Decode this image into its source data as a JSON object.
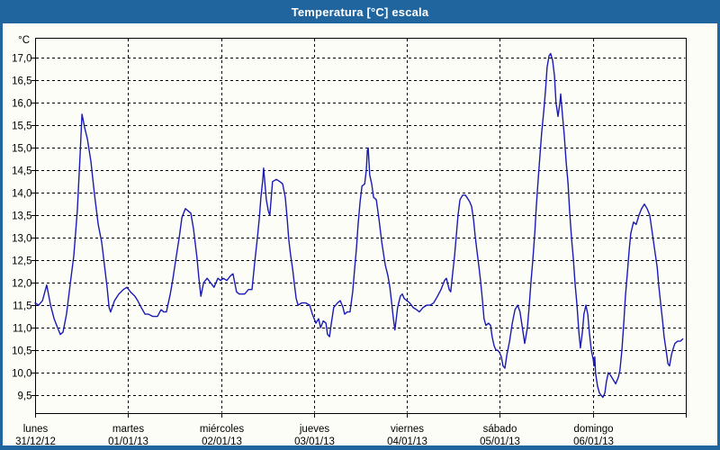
{
  "window": {
    "title": "Temperatura [°C] escala"
  },
  "colors": {
    "titlebar_bg": "#20659E",
    "frame_border": "#20659E",
    "background": "#FDFDF8",
    "grid": "#000000",
    "axis": "#000000",
    "line": "#1A1AB4",
    "title_text": "#FFFFFF",
    "label_text": "#000000"
  },
  "chart_data": {
    "type": "line",
    "title": "Temperatura [°C] escala",
    "y_unit_label": "°C",
    "grid": "dashed",
    "legend": "none",
    "ylim": [
      9.1,
      17.45
    ],
    "xlim_hours": [
      0,
      168
    ],
    "y_ticks": [
      {
        "value": 17.0,
        "label": "17,0"
      },
      {
        "value": 16.5,
        "label": "16,5"
      },
      {
        "value": 16.0,
        "label": "16,0"
      },
      {
        "value": 15.5,
        "label": "15,5"
      },
      {
        "value": 15.0,
        "label": "15,0"
      },
      {
        "value": 14.5,
        "label": "14,5"
      },
      {
        "value": 14.0,
        "label": "14,0"
      },
      {
        "value": 13.5,
        "label": "13,5"
      },
      {
        "value": 13.0,
        "label": "13,0"
      },
      {
        "value": 12.5,
        "label": "12,5"
      },
      {
        "value": 12.0,
        "label": "12,0"
      },
      {
        "value": 11.5,
        "label": "11,5"
      },
      {
        "value": 11.0,
        "label": "11,0"
      },
      {
        "value": 10.5,
        "label": "10,5"
      },
      {
        "value": 10.0,
        "label": "10,0"
      },
      {
        "value": 9.5,
        "label": "9,5"
      }
    ],
    "x_ticks": [
      {
        "hour": 0,
        "day": "lunes",
        "date": "31/12/12"
      },
      {
        "hour": 24,
        "day": "martes",
        "date": "01/01/13"
      },
      {
        "hour": 48,
        "day": "miércoles",
        "date": "02/01/13"
      },
      {
        "hour": 72,
        "day": "jueves",
        "date": "03/01/13"
      },
      {
        "hour": 96,
        "day": "viernes",
        "date": "04/01/13"
      },
      {
        "hour": 120,
        "day": "sábado",
        "date": "05/01/13"
      },
      {
        "hour": 144,
        "day": "domingo",
        "date": "06/01/13"
      }
    ],
    "series": [
      {
        "name": "Temperatura",
        "points": [
          [
            0,
            11.55
          ],
          [
            0.9,
            11.5
          ],
          [
            1.9,
            11.6
          ],
          [
            3,
            11.95
          ],
          [
            4,
            11.5
          ],
          [
            4.9,
            11.2
          ],
          [
            5.8,
            11.0
          ],
          [
            6.5,
            10.85
          ],
          [
            7.2,
            10.9
          ],
          [
            8.1,
            11.3
          ],
          [
            9.1,
            12.0
          ],
          [
            10,
            12.6
          ],
          [
            10.9,
            13.6
          ],
          [
            11.6,
            14.8
          ],
          [
            12.1,
            15.75
          ],
          [
            12.8,
            15.45
          ],
          [
            13.5,
            15.2
          ],
          [
            14.4,
            14.7
          ],
          [
            15.3,
            14.0
          ],
          [
            16.3,
            13.3
          ],
          [
            17.2,
            12.9
          ],
          [
            17.9,
            12.4
          ],
          [
            18.6,
            11.9
          ],
          [
            19.1,
            11.45
          ],
          [
            19.5,
            11.35
          ],
          [
            20.5,
            11.6
          ],
          [
            21.6,
            11.75
          ],
          [
            22.8,
            11.85
          ],
          [
            23.7,
            11.9
          ],
          [
            24.6,
            11.8
          ],
          [
            25.8,
            11.7
          ],
          [
            26.5,
            11.6
          ],
          [
            27.4,
            11.45
          ],
          [
            28.4,
            11.3
          ],
          [
            29.3,
            11.3
          ],
          [
            30.4,
            11.25
          ],
          [
            31.6,
            11.25
          ],
          [
            32.5,
            11.4
          ],
          [
            33.2,
            11.35
          ],
          [
            33.9,
            11.35
          ],
          [
            34.9,
            11.75
          ],
          [
            35.6,
            12.1
          ],
          [
            36.3,
            12.5
          ],
          [
            37.2,
            13.0
          ],
          [
            37.9,
            13.45
          ],
          [
            38.8,
            13.65
          ],
          [
            39.5,
            13.6
          ],
          [
            40.2,
            13.55
          ],
          [
            40.9,
            13.2
          ],
          [
            41.8,
            12.55
          ],
          [
            42.3,
            12.1
          ],
          [
            42.8,
            11.7
          ],
          [
            43.5,
            12.0
          ],
          [
            44.4,
            12.1
          ],
          [
            45.3,
            12.0
          ],
          [
            46.2,
            11.9
          ],
          [
            47.2,
            12.1
          ],
          [
            47.9,
            12.05
          ],
          [
            48.6,
            12.1
          ],
          [
            49.5,
            12.05
          ],
          [
            50.4,
            12.15
          ],
          [
            51.1,
            12.2
          ],
          [
            52,
            11.8
          ],
          [
            52.7,
            11.75
          ],
          [
            54.1,
            11.75
          ],
          [
            55.1,
            11.85
          ],
          [
            56,
            11.85
          ],
          [
            56.7,
            12.45
          ],
          [
            57.4,
            13.0
          ],
          [
            57.9,
            13.45
          ],
          [
            58.3,
            13.9
          ],
          [
            58.8,
            14.3
          ],
          [
            59,
            14.55
          ],
          [
            59.7,
            13.85
          ],
          [
            60.2,
            13.6
          ],
          [
            60.6,
            13.5
          ],
          [
            61.3,
            14.25
          ],
          [
            62.3,
            14.3
          ],
          [
            63.2,
            14.25
          ],
          [
            63.9,
            14.2
          ],
          [
            64.6,
            13.9
          ],
          [
            65.1,
            13.4
          ],
          [
            65.5,
            12.95
          ],
          [
            66,
            12.6
          ],
          [
            66.5,
            12.3
          ],
          [
            66.9,
            12.0
          ],
          [
            67.4,
            11.65
          ],
          [
            67.9,
            11.5
          ],
          [
            68.8,
            11.55
          ],
          [
            69.9,
            11.55
          ],
          [
            70.9,
            11.5
          ],
          [
            71.6,
            11.3
          ],
          [
            72.5,
            11.1
          ],
          [
            73.2,
            11.2
          ],
          [
            73.7,
            11.0
          ],
          [
            74.4,
            11.15
          ],
          [
            75.1,
            11.1
          ],
          [
            75.5,
            10.85
          ],
          [
            76,
            10.8
          ],
          [
            76.4,
            11.05
          ],
          [
            77.1,
            11.45
          ],
          [
            78.1,
            11.55
          ],
          [
            78.8,
            11.6
          ],
          [
            79.5,
            11.45
          ],
          [
            79.9,
            11.3
          ],
          [
            80.6,
            11.35
          ],
          [
            81.3,
            11.35
          ],
          [
            82,
            11.8
          ],
          [
            82.5,
            12.3
          ],
          [
            83,
            12.8
          ],
          [
            83.4,
            13.3
          ],
          [
            83.9,
            13.8
          ],
          [
            84.4,
            14.15
          ],
          [
            85.1,
            14.2
          ],
          [
            85.5,
            14.5
          ],
          [
            85.8,
            14.95
          ],
          [
            86,
            15.0
          ],
          [
            86.4,
            14.4
          ],
          [
            86.9,
            14.2
          ],
          [
            87.4,
            13.9
          ],
          [
            88.1,
            13.85
          ],
          [
            88.8,
            13.4
          ],
          [
            89.5,
            12.9
          ],
          [
            90.4,
            12.4
          ],
          [
            91.1,
            12.15
          ],
          [
            91.6,
            11.9
          ],
          [
            92,
            11.6
          ],
          [
            92.5,
            11.2
          ],
          [
            92.9,
            10.95
          ],
          [
            93.6,
            11.45
          ],
          [
            94.3,
            11.7
          ],
          [
            94.8,
            11.75
          ],
          [
            95.3,
            11.65
          ],
          [
            96,
            11.6
          ],
          [
            96.7,
            11.55
          ],
          [
            97.6,
            11.45
          ],
          [
            98.5,
            11.4
          ],
          [
            99.2,
            11.35
          ],
          [
            100.2,
            11.45
          ],
          [
            101.1,
            11.5
          ],
          [
            102,
            11.5
          ],
          [
            102.9,
            11.55
          ],
          [
            103.9,
            11.7
          ],
          [
            104.8,
            11.85
          ],
          [
            105.7,
            12.05
          ],
          [
            106.2,
            12.1
          ],
          [
            106.9,
            11.85
          ],
          [
            107.3,
            11.8
          ],
          [
            107.8,
            12.2
          ],
          [
            108.3,
            12.6
          ],
          [
            108.7,
            13.0
          ],
          [
            109.2,
            13.5
          ],
          [
            109.7,
            13.85
          ],
          [
            110.4,
            13.95
          ],
          [
            111.1,
            13.95
          ],
          [
            111.5,
            13.9
          ],
          [
            112.2,
            13.8
          ],
          [
            112.7,
            13.7
          ],
          [
            113.2,
            13.4
          ],
          [
            113.6,
            13.05
          ],
          [
            114.1,
            12.7
          ],
          [
            114.6,
            12.35
          ],
          [
            115,
            12.05
          ],
          [
            115.5,
            11.6
          ],
          [
            115.9,
            11.2
          ],
          [
            116.4,
            11.05
          ],
          [
            117.1,
            11.1
          ],
          [
            117.6,
            11.05
          ],
          [
            118,
            10.8
          ],
          [
            118.5,
            10.6
          ],
          [
            119,
            10.5
          ],
          [
            119.4,
            10.5
          ],
          [
            119.9,
            10.45
          ],
          [
            120.4,
            10.35
          ],
          [
            120.8,
            10.15
          ],
          [
            121.3,
            10.1
          ],
          [
            121.8,
            10.4
          ],
          [
            122.5,
            10.7
          ],
          [
            123.2,
            11.1
          ],
          [
            123.9,
            11.4
          ],
          [
            124.6,
            11.5
          ],
          [
            125.2,
            11.35
          ],
          [
            125.9,
            10.95
          ],
          [
            126.4,
            10.65
          ],
          [
            127.1,
            11.0
          ],
          [
            127.6,
            11.5
          ],
          [
            128,
            12.0
          ],
          [
            128.5,
            12.5
          ],
          [
            129,
            13.1
          ],
          [
            129.4,
            13.7
          ],
          [
            129.9,
            14.3
          ],
          [
            130.4,
            14.9
          ],
          [
            130.8,
            15.35
          ],
          [
            131.3,
            15.8
          ],
          [
            131.8,
            16.3
          ],
          [
            132.2,
            16.8
          ],
          [
            132.7,
            17.05
          ],
          [
            133.1,
            17.1
          ],
          [
            133.6,
            16.95
          ],
          [
            134.1,
            16.6
          ],
          [
            134.5,
            16.0
          ],
          [
            135,
            15.7
          ],
          [
            135.5,
            16.0
          ],
          [
            135.7,
            16.2
          ],
          [
            136.2,
            15.7
          ],
          [
            136.6,
            15.3
          ],
          [
            137.1,
            14.7
          ],
          [
            137.6,
            14.2
          ],
          [
            138,
            13.6
          ],
          [
            138.5,
            13.0
          ],
          [
            139,
            12.5
          ],
          [
            139.4,
            12.0
          ],
          [
            139.9,
            11.5
          ],
          [
            140.4,
            10.9
          ],
          [
            140.8,
            10.55
          ],
          [
            141.3,
            10.9
          ],
          [
            141.7,
            11.3
          ],
          [
            142.2,
            11.5
          ],
          [
            142.7,
            11.3
          ],
          [
            143.1,
            10.9
          ],
          [
            143.6,
            10.5
          ],
          [
            144.1,
            10.3
          ],
          [
            144.3,
            10.15
          ],
          [
            144.5,
            10.35
          ],
          [
            144.7,
            10.0
          ],
          [
            145.2,
            9.7
          ],
          [
            145.7,
            9.55
          ],
          [
            146.1,
            9.5
          ],
          [
            146.6,
            9.45
          ],
          [
            147.1,
            9.55
          ],
          [
            147.5,
            9.8
          ],
          [
            148,
            10.0
          ],
          [
            148.5,
            9.95
          ],
          [
            149.2,
            9.85
          ],
          [
            149.9,
            9.75
          ],
          [
            150.6,
            9.9
          ],
          [
            151,
            10.05
          ],
          [
            151.5,
            10.5
          ],
          [
            152,
            11.1
          ],
          [
            152.4,
            11.7
          ],
          [
            152.9,
            12.2
          ],
          [
            153.4,
            12.75
          ],
          [
            153.8,
            13.1
          ],
          [
            154.5,
            13.35
          ],
          [
            155.2,
            13.3
          ],
          [
            155.9,
            13.5
          ],
          [
            156.6,
            13.65
          ],
          [
            157.3,
            13.75
          ],
          [
            158,
            13.65
          ],
          [
            158.7,
            13.5
          ],
          [
            159.2,
            13.2
          ],
          [
            159.6,
            12.95
          ],
          [
            160.1,
            12.65
          ],
          [
            160.6,
            12.35
          ],
          [
            161,
            11.95
          ],
          [
            161.5,
            11.55
          ],
          [
            162,
            11.15
          ],
          [
            162.4,
            10.8
          ],
          [
            162.9,
            10.5
          ],
          [
            163.4,
            10.2
          ],
          [
            163.8,
            10.15
          ],
          [
            164.3,
            10.4
          ],
          [
            164.8,
            10.55
          ],
          [
            165.2,
            10.65
          ],
          [
            165.9,
            10.7
          ],
          [
            166.6,
            10.7
          ],
          [
            167.2,
            10.75
          ]
        ]
      }
    ]
  }
}
